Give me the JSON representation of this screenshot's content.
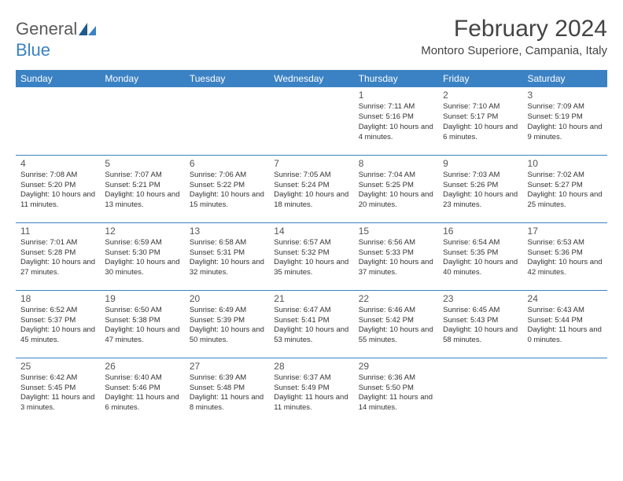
{
  "logo": {
    "general": "General",
    "blue": "Blue"
  },
  "title": "February 2024",
  "location": "Montoro Superiore, Campania, Italy",
  "colors": {
    "header_bg": "#3b82c4",
    "header_text": "#ffffff",
    "border": "#3b82c4",
    "text": "#333333",
    "logo_gray": "#5a5a5a",
    "logo_blue": "#3b82c4"
  },
  "daysOfWeek": [
    "Sunday",
    "Monday",
    "Tuesday",
    "Wednesday",
    "Thursday",
    "Friday",
    "Saturday"
  ],
  "weeks": [
    [
      null,
      null,
      null,
      null,
      {
        "n": "1",
        "sr": "7:11 AM",
        "ss": "5:16 PM",
        "dl": "10 hours and 4 minutes."
      },
      {
        "n": "2",
        "sr": "7:10 AM",
        "ss": "5:17 PM",
        "dl": "10 hours and 6 minutes."
      },
      {
        "n": "3",
        "sr": "7:09 AM",
        "ss": "5:19 PM",
        "dl": "10 hours and 9 minutes."
      }
    ],
    [
      {
        "n": "4",
        "sr": "7:08 AM",
        "ss": "5:20 PM",
        "dl": "10 hours and 11 minutes."
      },
      {
        "n": "5",
        "sr": "7:07 AM",
        "ss": "5:21 PM",
        "dl": "10 hours and 13 minutes."
      },
      {
        "n": "6",
        "sr": "7:06 AM",
        "ss": "5:22 PM",
        "dl": "10 hours and 15 minutes."
      },
      {
        "n": "7",
        "sr": "7:05 AM",
        "ss": "5:24 PM",
        "dl": "10 hours and 18 minutes."
      },
      {
        "n": "8",
        "sr": "7:04 AM",
        "ss": "5:25 PM",
        "dl": "10 hours and 20 minutes."
      },
      {
        "n": "9",
        "sr": "7:03 AM",
        "ss": "5:26 PM",
        "dl": "10 hours and 23 minutes."
      },
      {
        "n": "10",
        "sr": "7:02 AM",
        "ss": "5:27 PM",
        "dl": "10 hours and 25 minutes."
      }
    ],
    [
      {
        "n": "11",
        "sr": "7:01 AM",
        "ss": "5:28 PM",
        "dl": "10 hours and 27 minutes."
      },
      {
        "n": "12",
        "sr": "6:59 AM",
        "ss": "5:30 PM",
        "dl": "10 hours and 30 minutes."
      },
      {
        "n": "13",
        "sr": "6:58 AM",
        "ss": "5:31 PM",
        "dl": "10 hours and 32 minutes."
      },
      {
        "n": "14",
        "sr": "6:57 AM",
        "ss": "5:32 PM",
        "dl": "10 hours and 35 minutes."
      },
      {
        "n": "15",
        "sr": "6:56 AM",
        "ss": "5:33 PM",
        "dl": "10 hours and 37 minutes."
      },
      {
        "n": "16",
        "sr": "6:54 AM",
        "ss": "5:35 PM",
        "dl": "10 hours and 40 minutes."
      },
      {
        "n": "17",
        "sr": "6:53 AM",
        "ss": "5:36 PM",
        "dl": "10 hours and 42 minutes."
      }
    ],
    [
      {
        "n": "18",
        "sr": "6:52 AM",
        "ss": "5:37 PM",
        "dl": "10 hours and 45 minutes."
      },
      {
        "n": "19",
        "sr": "6:50 AM",
        "ss": "5:38 PM",
        "dl": "10 hours and 47 minutes."
      },
      {
        "n": "20",
        "sr": "6:49 AM",
        "ss": "5:39 PM",
        "dl": "10 hours and 50 minutes."
      },
      {
        "n": "21",
        "sr": "6:47 AM",
        "ss": "5:41 PM",
        "dl": "10 hours and 53 minutes."
      },
      {
        "n": "22",
        "sr": "6:46 AM",
        "ss": "5:42 PM",
        "dl": "10 hours and 55 minutes."
      },
      {
        "n": "23",
        "sr": "6:45 AM",
        "ss": "5:43 PM",
        "dl": "10 hours and 58 minutes."
      },
      {
        "n": "24",
        "sr": "6:43 AM",
        "ss": "5:44 PM",
        "dl": "11 hours and 0 minutes."
      }
    ],
    [
      {
        "n": "25",
        "sr": "6:42 AM",
        "ss": "5:45 PM",
        "dl": "11 hours and 3 minutes."
      },
      {
        "n": "26",
        "sr": "6:40 AM",
        "ss": "5:46 PM",
        "dl": "11 hours and 6 minutes."
      },
      {
        "n": "27",
        "sr": "6:39 AM",
        "ss": "5:48 PM",
        "dl": "11 hours and 8 minutes."
      },
      {
        "n": "28",
        "sr": "6:37 AM",
        "ss": "5:49 PM",
        "dl": "11 hours and 11 minutes."
      },
      {
        "n": "29",
        "sr": "6:36 AM",
        "ss": "5:50 PM",
        "dl": "11 hours and 14 minutes."
      },
      null,
      null
    ]
  ],
  "labels": {
    "sunrise": "Sunrise:",
    "sunset": "Sunset:",
    "daylight": "Daylight:"
  }
}
